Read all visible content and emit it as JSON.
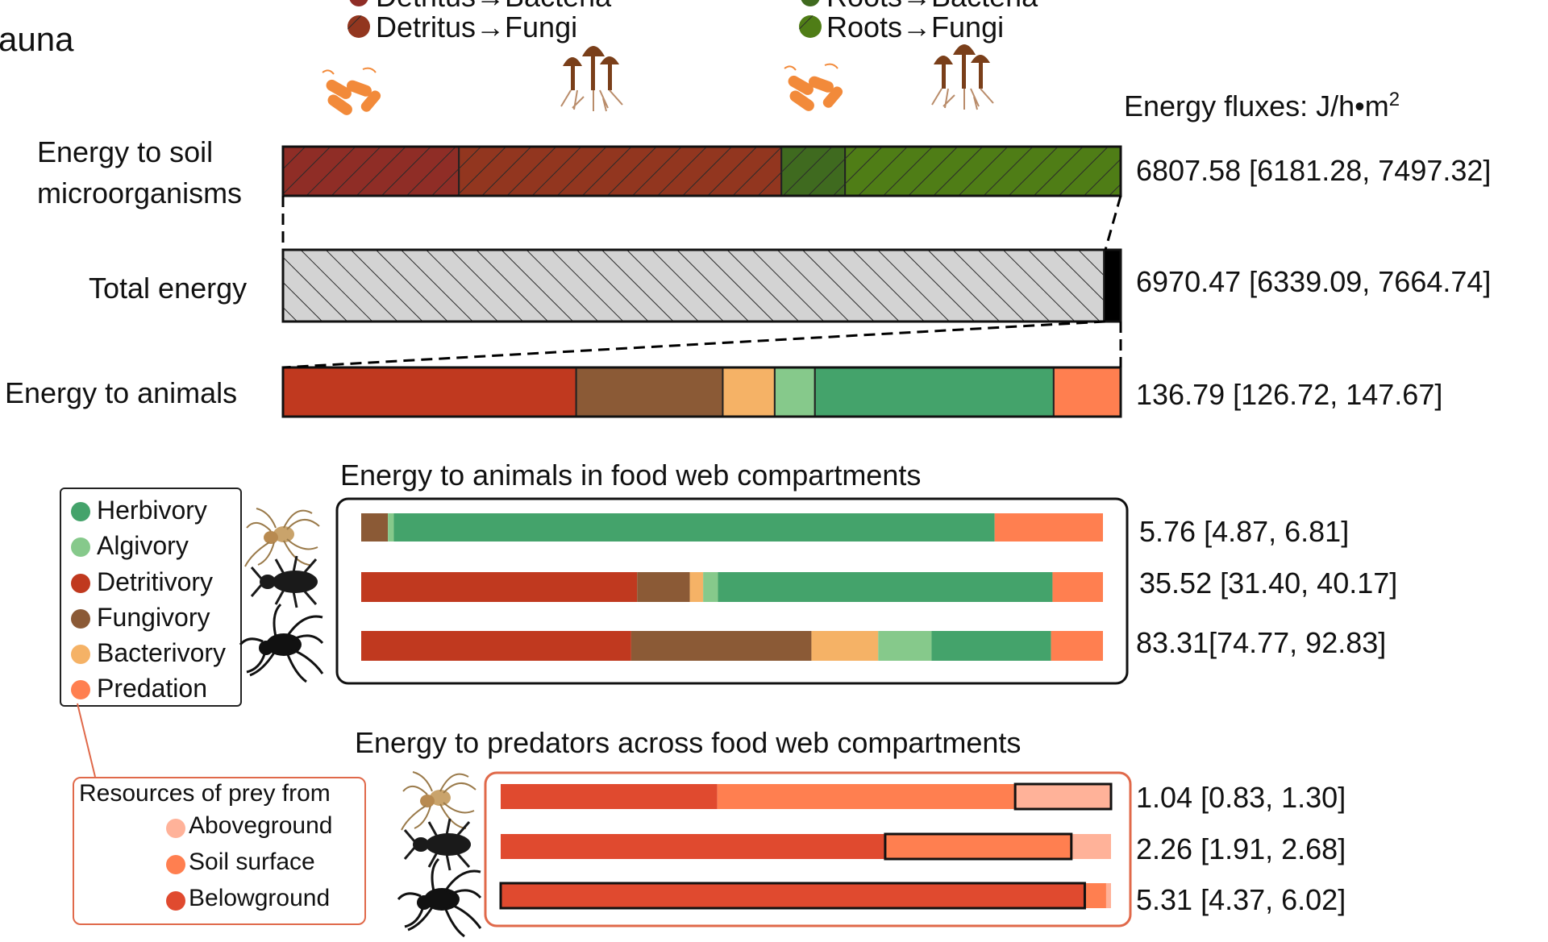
{
  "colors": {
    "herbivory": "#44a36b",
    "algivory": "#86c98b",
    "detritivory": "#c0391f",
    "fungivory": "#8b5a36",
    "bacterivory": "#f5b266",
    "predation": "#ff7f50",
    "aboveground": "#ffb299",
    "soil_surface": "#ff7f50",
    "belowground": "#e04a2f",
    "detritus_bacteria": "#8f2d26",
    "detritus_fungi": "#92361f",
    "roots_bacteria": "#3f6a1f",
    "roots_fungi": "#4f7d16",
    "total_energy": "#d3d3d3",
    "microbe_icon": "#f28a3a",
    "fungus_icon": "#7a3f1a"
  },
  "header": {
    "panel_label_partial": "auna",
    "legend_cut_left": "Detritus→Bacteria",
    "legend_cut_right": "Roots→Bacteria",
    "legend_left": "Detritus→Fungi",
    "legend_right": "Roots→Fungi",
    "flux_units_title": "Energy fluxes: J/h•m",
    "flux_units_sup": "2"
  },
  "icons": [
    "bacteria-icon",
    "fungus-icon",
    "bacteria-icon",
    "fungus-icon",
    "spider-icon",
    "beetle-icon",
    "centipede-icon"
  ],
  "chart_data": [
    {
      "type": "bar",
      "title": "Energy fluxes",
      "orientation": "horizontal-stacked",
      "rows": [
        {
          "label": "Energy to soil microorganisms",
          "value_text": "6807.58 [6181.28, 7497.32]",
          "value": 6807.58,
          "ci": [
            6181.28,
            7497.32
          ],
          "segments": [
            {
              "name": "Detritus→Bacteria",
              "value": 21,
              "color_key": "detritus_bacteria"
            },
            {
              "name": "Detritus→Fungi",
              "value": 38.5,
              "color_key": "detritus_fungi"
            },
            {
              "name": "Roots→Bacteria",
              "value": 7.6,
              "color_key": "roots_bacteria"
            },
            {
              "name": "Roots→Fungi",
              "value": 32.9,
              "color_key": "roots_fungi"
            }
          ]
        },
        {
          "label": "Total energy",
          "value_text": "6970.47 [6339.09, 7664.74]",
          "value": 6970.47,
          "ci": [
            6339.09,
            7664.74
          ],
          "segments": [
            {
              "name": "Energy to soil microorganisms",
              "value": 98,
              "color_key": "total_energy"
            },
            {
              "name": "Energy to animals",
              "value": 2,
              "color_key": "black"
            }
          ]
        },
        {
          "label": "Energy to animals",
          "value_text": "136.79 [126.72, 147.67]",
          "value": 136.79,
          "ci": [
            126.72,
            147.67
          ],
          "segments": [
            {
              "name": "Detritivory",
              "value": 35,
              "color_key": "detritivory"
            },
            {
              "name": "Fungivory",
              "value": 17.5,
              "color_key": "fungivory"
            },
            {
              "name": "Bacterivory",
              "value": 6.2,
              "color_key": "bacterivory"
            },
            {
              "name": "Algivory",
              "value": 4.8,
              "color_key": "algivory"
            },
            {
              "name": "Herbivory",
              "value": 28.5,
              "color_key": "herbivory"
            },
            {
              "name": "Predation",
              "value": 8,
              "color_key": "predation"
            }
          ]
        }
      ]
    },
    {
      "type": "bar",
      "title": "Energy to animals in food web compartments",
      "orientation": "horizontal-stacked",
      "legend": [
        "Herbivory",
        "Algivory",
        "Detritivory",
        "Fungivory",
        "Bacterivory",
        "Predation"
      ],
      "rows": [
        {
          "group": "Aboveground",
          "value_text": "5.76 [4.87, 6.81]",
          "value": 5.76,
          "ci": [
            4.87,
            6.81
          ],
          "segments": [
            {
              "name": "Fungivory",
              "value": 3.6,
              "color_key": "fungivory"
            },
            {
              "name": "Algivory",
              "value": 0.8,
              "color_key": "algivory"
            },
            {
              "name": "Herbivory",
              "value": 81,
              "color_key": "herbivory"
            },
            {
              "name": "Predation",
              "value": 14.6,
              "color_key": "predation"
            }
          ]
        },
        {
          "group": "Soil surface",
          "value_text": "35.52 [31.40, 40.17]",
          "value": 35.52,
          "ci": [
            31.4,
            40.17
          ],
          "segments": [
            {
              "name": "Detritivory",
              "value": 37.2,
              "color_key": "detritivory"
            },
            {
              "name": "Fungivory",
              "value": 7.1,
              "color_key": "fungivory"
            },
            {
              "name": "Bacterivory",
              "value": 1.8,
              "color_key": "bacterivory"
            },
            {
              "name": "Algivory",
              "value": 2,
              "color_key": "algivory"
            },
            {
              "name": "Herbivory",
              "value": 45.1,
              "color_key": "herbivory"
            },
            {
              "name": "Predation",
              "value": 6.8,
              "color_key": "predation"
            }
          ]
        },
        {
          "group": "Belowground",
          "value_text": "83.31[74.77, 92.83]",
          "value": 83.31,
          "ci": [
            74.77,
            92.83
          ],
          "segments": [
            {
              "name": "Detritivory",
              "value": 36.4,
              "color_key": "detritivory"
            },
            {
              "name": "Fungivory",
              "value": 24.3,
              "color_key": "fungivory"
            },
            {
              "name": "Bacterivory",
              "value": 9,
              "color_key": "bacterivory"
            },
            {
              "name": "Algivory",
              "value": 7.2,
              "color_key": "algivory"
            },
            {
              "name": "Herbivory",
              "value": 16.1,
              "color_key": "herbivory"
            },
            {
              "name": "Predation",
              "value": 7,
              "color_key": "predation"
            }
          ]
        }
      ]
    },
    {
      "type": "bar",
      "title": "Energy to predators across food web compartments",
      "orientation": "horizontal-stacked",
      "legend_title": "Resources of prey from",
      "legend": [
        "Aboveground",
        "Soil surface",
        "Belowground"
      ],
      "rows": [
        {
          "group": "Aboveground",
          "value_text": "1.04 [0.83, 1.30]",
          "value": 1.04,
          "ci": [
            0.83,
            1.3
          ],
          "outlined": "Aboveground",
          "segments": [
            {
              "name": "Belowground",
              "value": 35.5,
              "color_key": "belowground"
            },
            {
              "name": "Soil surface",
              "value": 48.8,
              "color_key": "soil_surface"
            },
            {
              "name": "Aboveground",
              "value": 15.7,
              "color_key": "aboveground"
            }
          ]
        },
        {
          "group": "Soil surface",
          "value_text": "2.26 [1.91, 2.68]",
          "value": 2.26,
          "ci": [
            1.91,
            2.68
          ],
          "outlined": "Soil surface",
          "segments": [
            {
              "name": "Belowground",
              "value": 63,
              "color_key": "belowground"
            },
            {
              "name": "Soil surface",
              "value": 30.5,
              "color_key": "soil_surface"
            },
            {
              "name": "Aboveground",
              "value": 6.5,
              "color_key": "aboveground"
            }
          ]
        },
        {
          "group": "Belowground",
          "value_text": "5.31 [4.37, 6.02]",
          "value": 5.31,
          "ci": [
            4.37,
            6.02
          ],
          "outlined": "Belowground",
          "segments": [
            {
              "name": "Belowground",
              "value": 95.7,
              "color_key": "belowground"
            },
            {
              "name": "Soil surface",
              "value": 3.5,
              "color_key": "soil_surface"
            },
            {
              "name": "Aboveground",
              "value": 0.8,
              "color_key": "aboveground"
            }
          ]
        }
      ]
    }
  ]
}
